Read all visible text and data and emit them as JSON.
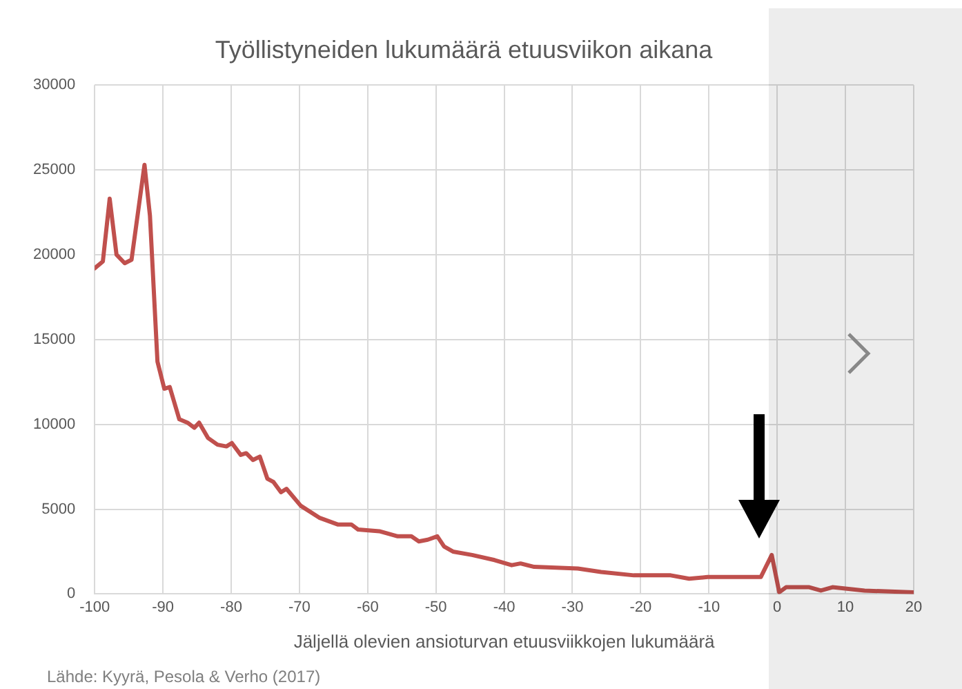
{
  "chart_data": {
    "type": "line",
    "title": "Työllistyneiden lukumäärä etuusviikon aikana",
    "xlabel": "Jäljellä olevien ansioturvan etuusviikkojen lukumäärä",
    "annotations": [
      "Lähde: Kyyrä, Pesola & Verho (2017)"
    ],
    "x": [
      -100,
      -98.8,
      -97.8,
      -96.8,
      -95.6,
      -94.6,
      -92.7,
      -91.9,
      -90.8,
      -89.8,
      -89,
      -87.6,
      -86.4,
      -85.4,
      -84.7,
      -83.4,
      -82,
      -80.7,
      -79.9,
      -78.6,
      -77.8,
      -76.8,
      -75.8,
      -74.7,
      -73.8,
      -72.7,
      -71.9,
      -69.8,
      -67.1,
      -64.4,
      -62.4,
      -61.4,
      -58.3,
      -55.6,
      -53.6,
      -52.5,
      -51.2,
      -49.8,
      -48.8,
      -47.5,
      -44.7,
      -41.4,
      -38.9,
      -37.6,
      -35.6,
      -29.2,
      -25.8,
      -21,
      -15.6,
      -12.9,
      -10.2,
      -2.4,
      -0.8,
      0.3,
      1.3,
      4.7,
      6.4,
      8.1,
      12.8,
      20
    ],
    "series": [
      {
        "color": "#c0504d",
        "values": [
          19200,
          19600,
          23300,
          20000,
          19500,
          19700,
          25300,
          22300,
          13700,
          12100,
          12200,
          10300,
          10100,
          9800,
          10100,
          9200,
          8800,
          8700,
          8900,
          8200,
          8300,
          7900,
          8100,
          6800,
          6600,
          6000,
          6200,
          5200,
          4500,
          4100,
          4100,
          3800,
          3700,
          3400,
          3400,
          3100,
          3200,
          3400,
          2800,
          2500,
          2300,
          2000,
          1700,
          1800,
          1600,
          1500,
          1300,
          1100,
          1100,
          900,
          1000,
          1000,
          2300,
          100,
          400,
          400,
          200,
          400,
          200,
          100
        ]
      }
    ],
    "xlim": [
      -100,
      20
    ],
    "xticks": [
      -100,
      -90,
      -80,
      -70,
      -60,
      -50,
      -40,
      -30,
      -20,
      -10,
      0,
      10,
      20
    ],
    "ylim": [
      0,
      30000
    ],
    "yticks": [
      0,
      5000,
      10000,
      15000,
      20000,
      25000,
      30000
    ],
    "grid": true,
    "legend": false,
    "marker": "none",
    "line_style": "solid"
  }
}
